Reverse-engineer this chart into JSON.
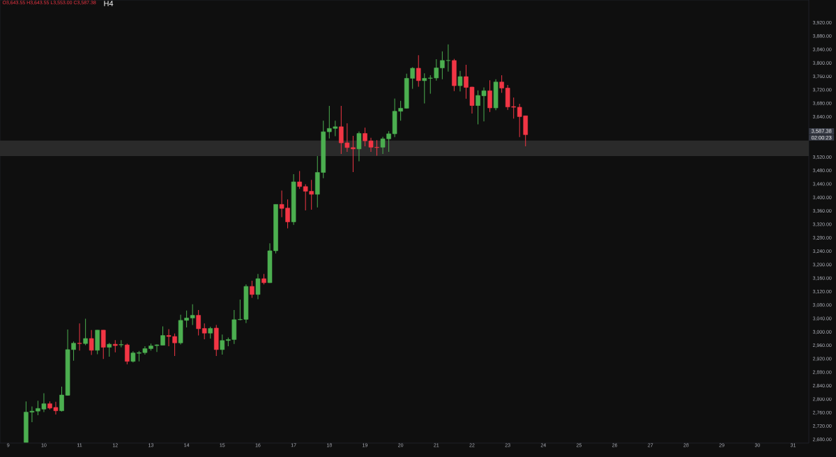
{
  "chart_data": {
    "type": "candlestick",
    "annotations": [
      "O3,643.55 H3,643.55 L3,553.00 C3,587.38",
      "H4",
      "3,587.38",
      "02:00:23"
    ],
    "x": [
      9.5,
      9.667,
      9.833,
      10,
      10.167,
      10.333,
      10.5,
      10.667,
      10.833,
      11,
      11.167,
      11.333,
      11.5,
      11.667,
      11.833,
      12,
      12.167,
      12.333,
      12.5,
      12.667,
      12.833,
      13,
      13.167,
      13.333,
      13.5,
      13.667,
      13.833,
      14,
      14.167,
      14.333,
      14.5,
      14.667,
      14.833,
      15,
      15.167,
      15.333,
      15.5,
      15.667,
      15.833,
      16,
      16.167,
      16.333,
      16.5,
      16.667,
      16.833,
      17,
      17.167,
      17.333,
      17.5,
      17.667,
      17.833,
      18,
      18.167,
      18.333,
      18.5,
      18.667,
      18.833,
      19,
      19.167,
      19.333,
      19.5,
      19.667,
      19.833,
      20,
      20.167,
      20.333,
      20.5,
      20.667,
      20.833,
      21,
      21.167,
      21.333,
      21.5,
      21.667,
      21.833,
      22,
      22.167,
      22.333,
      22.5,
      22.667,
      22.833,
      23,
      23.167,
      23.333,
      23.5
    ],
    "ohlc": [
      [
        2672,
        2794,
        2672,
        2762
      ],
      [
        2762,
        2779,
        2732,
        2765
      ],
      [
        2765,
        2796,
        2753,
        2773
      ],
      [
        2771,
        2818,
        2762,
        2787
      ],
      [
        2787,
        2794,
        2770,
        2774
      ],
      [
        2776,
        2793,
        2755,
        2766
      ],
      [
        2766,
        2838,
        2764,
        2813
      ],
      [
        2812,
        3008,
        2811,
        2948
      ],
      [
        2948,
        2972,
        2915,
        2967
      ],
      [
        2967,
        3026,
        2945,
        2966
      ],
      [
        2966,
        3040,
        2961,
        2981
      ],
      [
        2981,
        3006,
        2932,
        2946
      ],
      [
        2946,
        3006,
        2934,
        3006
      ],
      [
        3006,
        3006,
        2920,
        2955
      ],
      [
        2955,
        2968,
        2927,
        2964
      ],
      [
        2964,
        2976,
        2940,
        2960
      ],
      [
        2962,
        2976,
        2955,
        2963
      ],
      [
        2962,
        2966,
        2904,
        2913
      ],
      [
        2913,
        2943,
        2910,
        2938
      ],
      [
        2937,
        2944,
        2913,
        2939
      ],
      [
        2939,
        2958,
        2933,
        2951
      ],
      [
        2951,
        2966,
        2945,
        2959
      ],
      [
        2960,
        2964,
        2941,
        2962
      ],
      [
        2961,
        3017,
        2961,
        2990
      ],
      [
        2990,
        3009,
        2958,
        2987
      ],
      [
        2987,
        2996,
        2929,
        2968
      ],
      [
        2968,
        3052,
        2963,
        3035
      ],
      [
        3035,
        3064,
        3014,
        3042
      ],
      [
        3042,
        3083,
        3021,
        3050
      ],
      [
        3050,
        3066,
        2990,
        3010
      ],
      [
        3011,
        3026,
        2979,
        2997
      ],
      [
        2997,
        3016,
        2981,
        3011
      ],
      [
        3012,
        3021,
        2929,
        2948
      ],
      [
        2948,
        2993,
        2933,
        2975
      ],
      [
        2975,
        2984,
        2958,
        2978
      ],
      [
        2978,
        3066,
        2965,
        3037
      ],
      [
        3037,
        3097,
        3035,
        3038
      ],
      [
        3038,
        3142,
        3027,
        3136
      ],
      [
        3136,
        3153,
        3102,
        3112
      ],
      [
        3112,
        3173,
        3098,
        3159
      ],
      [
        3159,
        3173,
        3142,
        3147
      ],
      [
        3147,
        3264,
        3146,
        3242
      ],
      [
        3242,
        3380,
        3234,
        3380
      ],
      [
        3380,
        3421,
        3342,
        3368
      ],
      [
        3369,
        3395,
        3309,
        3328
      ],
      [
        3328,
        3470,
        3319,
        3447
      ],
      [
        3447,
        3479,
        3426,
        3433
      ],
      [
        3433,
        3440,
        3362,
        3419
      ],
      [
        3419,
        3453,
        3364,
        3410
      ],
      [
        3410,
        3524,
        3371,
        3475
      ],
      [
        3475,
        3629,
        3458,
        3596
      ],
      [
        3596,
        3673,
        3576,
        3606
      ],
      [
        3606,
        3629,
        3583,
        3611
      ],
      [
        3611,
        3673,
        3530,
        3563
      ],
      [
        3563,
        3621,
        3536,
        3549
      ],
      [
        3549,
        3584,
        3476,
        3545
      ],
      [
        3545,
        3597,
        3508,
        3591
      ],
      [
        3591,
        3608,
        3553,
        3569
      ],
      [
        3569,
        3578,
        3536,
        3550
      ],
      [
        3550,
        3571,
        3525,
        3549
      ],
      [
        3550,
        3581,
        3530,
        3575
      ],
      [
        3575,
        3598,
        3536,
        3590
      ],
      [
        3590,
        3695,
        3580,
        3657
      ],
      [
        3657,
        3688,
        3629,
        3666
      ],
      [
        3666,
        3769,
        3665,
        3755
      ],
      [
        3755,
        3788,
        3724,
        3785
      ],
      [
        3785,
        3824,
        3730,
        3748
      ],
      [
        3748,
        3770,
        3680,
        3755
      ],
      [
        3755,
        3764,
        3709,
        3756
      ],
      [
        3756,
        3812,
        3748,
        3786
      ],
      [
        3786,
        3835,
        3752,
        3808
      ],
      [
        3808,
        3856,
        3775,
        3808
      ],
      [
        3808,
        3813,
        3717,
        3733
      ],
      [
        3733,
        3777,
        3716,
        3760
      ],
      [
        3760,
        3795,
        3694,
        3728
      ],
      [
        3729,
        3730,
        3650,
        3674
      ],
      [
        3674,
        3719,
        3618,
        3704
      ],
      [
        3703,
        3728,
        3627,
        3718
      ],
      [
        3718,
        3749,
        3655,
        3667
      ],
      [
        3667,
        3752,
        3660,
        3744
      ],
      [
        3744,
        3764,
        3712,
        3726
      ],
      [
        3726,
        3735,
        3661,
        3670
      ],
      [
        3671,
        3698,
        3635,
        3669
      ],
      [
        3669,
        3679,
        3580,
        3641
      ],
      [
        3643.55,
        3643.55,
        3553,
        3587.38
      ]
    ],
    "xlim": [
      8.77,
      31.44
    ],
    "xticks": [
      9,
      10,
      11,
      12,
      13,
      14,
      15,
      16,
      17,
      18,
      19,
      20,
      21,
      22,
      23,
      24,
      25,
      26,
      27,
      28,
      29,
      30,
      31
    ],
    "ylim": [
      2670,
      3988
    ],
    "yticks": [
      {
        "value": 2680,
        "label": "2,680.00"
      },
      {
        "value": 2720,
        "label": "2,720.00"
      },
      {
        "value": 2760,
        "label": "2,760.00"
      },
      {
        "value": 2800,
        "label": "2,800.00"
      },
      {
        "value": 2840,
        "label": "2,840.00"
      },
      {
        "value": 2880,
        "label": "2,880.00"
      },
      {
        "value": 2920,
        "label": "2,920.00"
      },
      {
        "value": 2960,
        "label": "2,960.00"
      },
      {
        "value": 3000,
        "label": "3,000.00"
      },
      {
        "value": 3040,
        "label": "3,040.00"
      },
      {
        "value": 3080,
        "label": "3,080.00"
      },
      {
        "value": 3120,
        "label": "3,120.00"
      },
      {
        "value": 3160,
        "label": "3,160.00"
      },
      {
        "value": 3200,
        "label": "3,200.00"
      },
      {
        "value": 3240,
        "label": "3,240.00"
      },
      {
        "value": 3280,
        "label": "3,280.00"
      },
      {
        "value": 3320,
        "label": "3,320.00"
      },
      {
        "value": 3360,
        "label": "3,360.00"
      },
      {
        "value": 3400,
        "label": "3,400.00"
      },
      {
        "value": 3440,
        "label": "3,440.00"
      },
      {
        "value": 3480,
        "label": "3,480.00"
      },
      {
        "value": 3520,
        "label": "3,520.00"
      },
      {
        "value": 3640,
        "label": "3,640.00"
      },
      {
        "value": 3680,
        "label": "3,680.00"
      },
      {
        "value": 3720,
        "label": "3,720.00"
      },
      {
        "value": 3760,
        "label": "3,760.00"
      },
      {
        "value": 3800,
        "label": "3,800.00"
      },
      {
        "value": 3840,
        "label": "3,840.00"
      },
      {
        "value": 3880,
        "label": "3,880.00"
      },
      {
        "value": 3920,
        "label": "3,920.00"
      }
    ],
    "bands": [
      {
        "axis": "y",
        "from": 3524,
        "to": 3570,
        "color": "#2a2a2a"
      }
    ]
  }
}
